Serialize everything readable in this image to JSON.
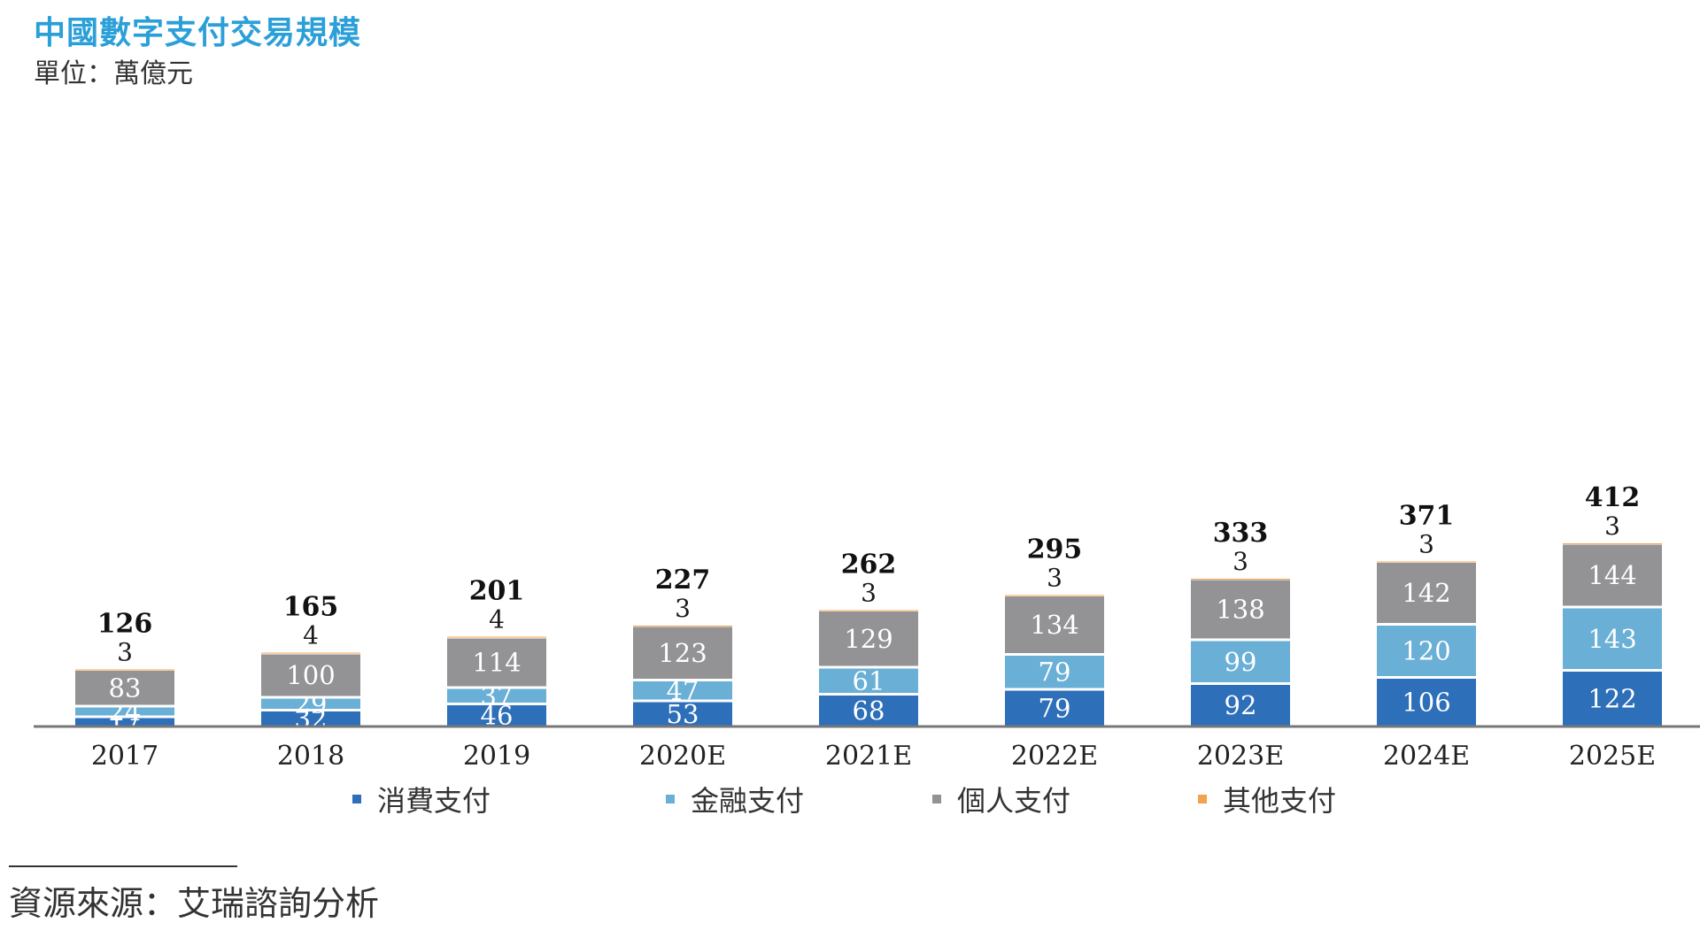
{
  "chart_data": {
    "type": "bar",
    "stacked": true,
    "title": "中國數字支付交易規模",
    "subtitle": "單位：萬億元",
    "categories": [
      "2017",
      "2018",
      "2019",
      "2020E",
      "2021E",
      "2022E",
      "2023E",
      "2024E",
      "2025E"
    ],
    "series": [
      {
        "name": "消費支付",
        "color": "#2e6fba",
        "values": [
          17,
          32,
          46,
          53,
          68,
          79,
          92,
          106,
          122
        ]
      },
      {
        "name": "金融支付",
        "color": "#6aafd6",
        "values": [
          24,
          29,
          37,
          47,
          61,
          79,
          99,
          120,
          143
        ]
      },
      {
        "name": "個人支付",
        "color": "#939396",
        "values": [
          83,
          100,
          114,
          123,
          129,
          134,
          138,
          142,
          144
        ]
      },
      {
        "name": "其他支付",
        "color": "#f0a34c",
        "values": [
          3,
          4,
          4,
          3,
          3,
          3,
          3,
          3,
          3
        ]
      }
    ],
    "totals": [
      126,
      165,
      201,
      227,
      262,
      295,
      333,
      371,
      412
    ],
    "ylim": [
      0,
      420
    ],
    "xlabel": "",
    "ylabel": "",
    "grid": false,
    "legend": "bottom"
  },
  "source": "資源來源：艾瑞諮詢分析"
}
